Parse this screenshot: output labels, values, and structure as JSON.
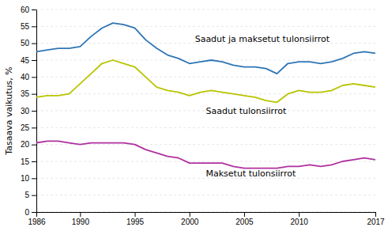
{
  "chart_data": {
    "type": "line",
    "ylabel": "Tasaava vaikutus, %",
    "x": [
      1986,
      1987,
      1988,
      1989,
      1990,
      1991,
      1992,
      1993,
      1994,
      1995,
      1996,
      1997,
      1998,
      1999,
      2000,
      2001,
      2002,
      2003,
      2004,
      2005,
      2006,
      2007,
      2008,
      2009,
      2010,
      2011,
      2012,
      2013,
      2014,
      2015,
      2016,
      2017
    ],
    "series": [
      {
        "color": "#2e75b6",
        "values": [
          47.5,
          48.0,
          48.5,
          48.5,
          49.0,
          52.0,
          54.5,
          56.0,
          55.5,
          54.5,
          51.0,
          48.5,
          46.5,
          45.5,
          44.0,
          44.5,
          45.0,
          44.5,
          43.5,
          43.0,
          43.0,
          42.5,
          41.0,
          44.0,
          44.5,
          44.5,
          44.0,
          44.5,
          45.5,
          47.0,
          47.5,
          47.0
        ]
      },
      {
        "color": "#b8c400",
        "values": [
          34.0,
          34.5,
          34.5,
          35.0,
          38.0,
          41.0,
          44.0,
          45.0,
          44.0,
          43.0,
          40.0,
          37.0,
          36.0,
          35.5,
          34.5,
          35.5,
          36.0,
          35.5,
          35.0,
          34.5,
          34.0,
          33.0,
          32.5,
          35.0,
          36.0,
          35.5,
          35.5,
          36.0,
          37.5,
          38.0,
          37.5,
          37.0
        ]
      },
      {
        "color": "#b030a0",
        "values": [
          20.5,
          21.0,
          21.0,
          20.5,
          20.0,
          20.5,
          20.5,
          20.5,
          20.5,
          20.0,
          18.5,
          17.5,
          16.5,
          16.0,
          14.5,
          14.5,
          14.5,
          14.5,
          13.5,
          13.0,
          13.0,
          13.0,
          13.0,
          13.5,
          13.5,
          14.0,
          13.5,
          14.0,
          15.0,
          15.5,
          16.0,
          15.5
        ]
      }
    ],
    "annotations": [
      {
        "text": "Saadut ja maksetut tulonsiirrot",
        "x": 2000.5,
        "y": 50.5
      },
      {
        "text": "Saadut tulonsiirrot",
        "x": 2001.5,
        "y": 29.0
      },
      {
        "text": "Maksetut tulonsiirrot",
        "x": 2001.5,
        "y": 10.5
      }
    ],
    "xlim": [
      1986,
      2017
    ],
    "xticks": [
      1986,
      1990,
      1995,
      2000,
      2005,
      2010,
      2017
    ],
    "ylim": [
      0,
      60
    ],
    "yticks": [
      0,
      5,
      10,
      15,
      20,
      25,
      30,
      35,
      40,
      45,
      50,
      55,
      60
    ],
    "grid": true
  }
}
